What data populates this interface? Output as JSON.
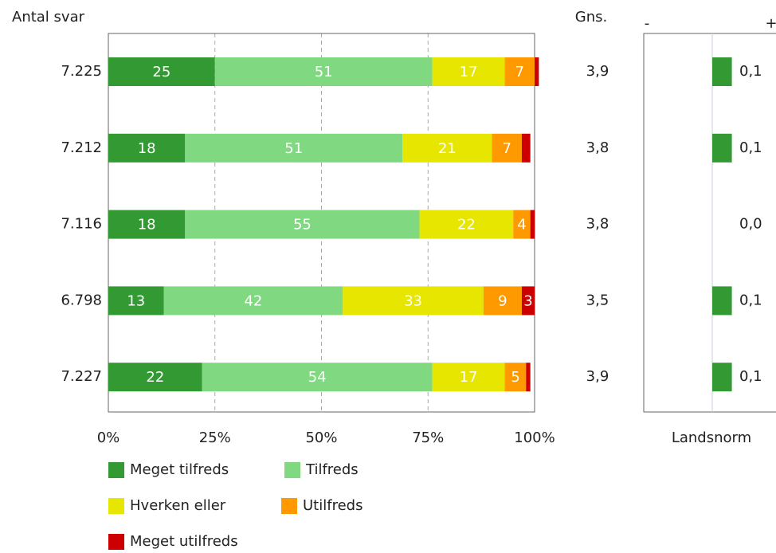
{
  "chart_data": {
    "type": "bar",
    "orientation": "horizontal",
    "stacked": true,
    "axis_title": "Antal svar",
    "categories": [
      "7.225",
      "7.212",
      "7.116",
      "6.798",
      "7.227"
    ],
    "series": [
      {
        "name": "Meget tilfreds",
        "color": "#339933",
        "values": [
          25,
          18,
          18,
          13,
          22
        ]
      },
      {
        "name": "Tilfreds",
        "color": "#80d880",
        "values": [
          51,
          51,
          55,
          42,
          54
        ]
      },
      {
        "name": "Hverken eller",
        "color": "#e6e600",
        "values": [
          17,
          21,
          22,
          33,
          17
        ]
      },
      {
        "name": "Utilfreds",
        "color": "#ff9900",
        "values": [
          7,
          7,
          4,
          9,
          5
        ]
      },
      {
        "name": "Meget utilfreds",
        "color": "#cc0000",
        "values": [
          1,
          2,
          1,
          3,
          1
        ]
      }
    ],
    "xlim": [
      0,
      100
    ],
    "xticks": [
      {
        "value": 0,
        "label": "0%"
      },
      {
        "value": 25,
        "label": "25%"
      },
      {
        "value": 50,
        "label": "50%"
      },
      {
        "value": 75,
        "label": "75%"
      },
      {
        "value": 100,
        "label": "100%"
      }
    ],
    "grid": true,
    "gns": {
      "title": "Gns.",
      "values": [
        3.9,
        3.8,
        3.8,
        3.5,
        3.9
      ],
      "value_labels": [
        "3,9",
        "3,8",
        "3,8",
        "3,5",
        "3,9"
      ]
    },
    "landsnorm": {
      "title": "Landsnorm",
      "ends": [
        "-",
        "+"
      ],
      "color": "#339933",
      "xlim": [
        -0.35,
        0.35
      ],
      "values": [
        0.1,
        0.1,
        0.0,
        0.1,
        0.1
      ],
      "value_labels": [
        "0,1",
        "0,1",
        "0,0",
        "0,1",
        "0,1"
      ]
    }
  }
}
